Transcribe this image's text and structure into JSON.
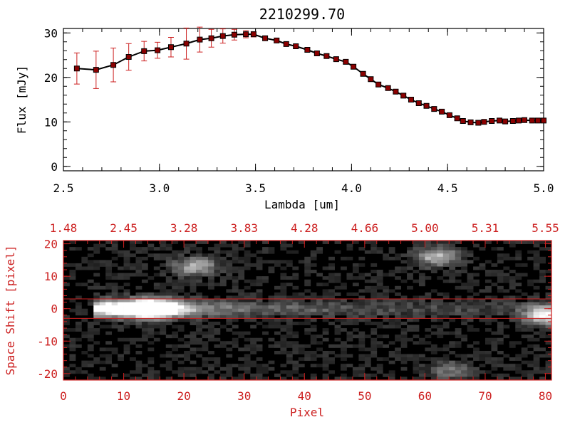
{
  "title": "2210299.70",
  "colors": {
    "axis_top": "#000000",
    "axis_bottom": "#cc1f1f",
    "marker": "#8b0000",
    "errorbar": "#cc1f1f",
    "line": "#000000"
  },
  "chart_data": [
    {
      "type": "line",
      "title": "2210299.70",
      "xlabel": "Lambda [um]",
      "ylabel": "Flux [mJy]",
      "xlim": [
        2.5,
        5.0
      ],
      "ylim": [
        -1,
        31
      ],
      "xticks": [
        2.5,
        3.0,
        3.5,
        4.0,
        4.5,
        5.0
      ],
      "xtick_labels": [
        "2.5",
        "3.0",
        "3.5",
        "4.0",
        "4.5",
        "5.0"
      ],
      "yticks": [
        0,
        10,
        20,
        30
      ],
      "ytick_labels": [
        "0",
        "10",
        "20",
        "30"
      ],
      "series": [
        {
          "x": [
            2.57,
            2.67,
            2.76,
            2.84,
            2.92,
            2.99,
            3.06,
            3.14,
            3.21,
            3.27,
            3.33,
            3.39,
            3.45,
            3.49,
            3.55,
            3.61,
            3.66,
            3.71,
            3.77,
            3.82,
            3.87,
            3.92,
            3.97,
            4.01,
            4.06,
            4.1,
            4.14,
            4.19,
            4.23,
            4.27,
            4.31,
            4.35,
            4.39,
            4.43,
            4.47,
            4.51,
            4.55,
            4.58,
            4.62,
            4.66,
            4.69,
            4.73,
            4.77,
            4.8,
            4.84,
            4.87,
            4.9,
            4.94,
            4.97,
            5.0
          ],
          "y": [
            22.0,
            21.7,
            22.8,
            24.6,
            25.9,
            26.1,
            26.8,
            27.6,
            28.5,
            28.8,
            29.3,
            29.6,
            29.7,
            29.7,
            28.8,
            28.3,
            27.5,
            27.0,
            26.2,
            25.4,
            24.8,
            24.1,
            23.5,
            22.4,
            20.8,
            19.6,
            18.4,
            17.6,
            16.8,
            15.9,
            15.0,
            14.2,
            13.6,
            12.9,
            12.3,
            11.5,
            10.8,
            10.2,
            9.9,
            9.8,
            10.0,
            10.2,
            10.3,
            10.1,
            10.2,
            10.3,
            10.4,
            10.3,
            10.3,
            10.3
          ],
          "yerr": [
            3.5,
            4.2,
            3.8,
            3.0,
            2.2,
            1.8,
            2.2,
            3.5,
            2.8,
            2.0,
            1.6,
            1.2,
            0.8,
            0.6,
            0.5,
            0.5,
            0.5,
            0.5,
            0.5,
            0.5,
            0.5,
            0.5,
            0.5,
            0.5,
            0.5,
            0.5,
            0.5,
            0.5,
            0.5,
            0.5,
            0.5,
            0.5,
            0.5,
            0.5,
            0.5,
            0.5,
            0.5,
            0.5,
            0.5,
            0.5,
            0.5,
            0.5,
            0.5,
            0.5,
            0.5,
            0.5,
            0.5,
            0.5,
            0.5,
            0.5
          ]
        }
      ]
    },
    {
      "type": "heatmap",
      "xlabel": "Pixel",
      "ylabel": "Space Shift [pixel]",
      "xlim": [
        0,
        81
      ],
      "ylim": [
        -22,
        21
      ],
      "xticks": [
        0,
        10,
        20,
        30,
        40,
        50,
        60,
        70,
        80
      ],
      "xtick_labels": [
        "0",
        "10",
        "20",
        "30",
        "40",
        "50",
        "60",
        "70",
        "80"
      ],
      "yticks": [
        -20,
        -10,
        0,
        10,
        20
      ],
      "ytick_labels": [
        "-20",
        "-10",
        "0",
        "10",
        "20"
      ],
      "top_axis_labels": [
        "1.48",
        "2.45",
        "3.28",
        "3.83",
        "4.28",
        "4.66",
        "5.00",
        "5.31",
        "5.55"
      ],
      "extraction_aperture": [
        -3,
        3
      ],
      "sources": [
        {
          "center": [
            15,
            0
          ],
          "peak": 0.95
        },
        {
          "center": [
            22,
            13
          ],
          "peak": 0.6
        },
        {
          "center": [
            62,
            16
          ],
          "peak": 0.65
        },
        {
          "center": [
            80,
            -2
          ],
          "peak": 0.85
        },
        {
          "center": [
            64,
            -19
          ],
          "peak": 0.35
        }
      ]
    }
  ]
}
